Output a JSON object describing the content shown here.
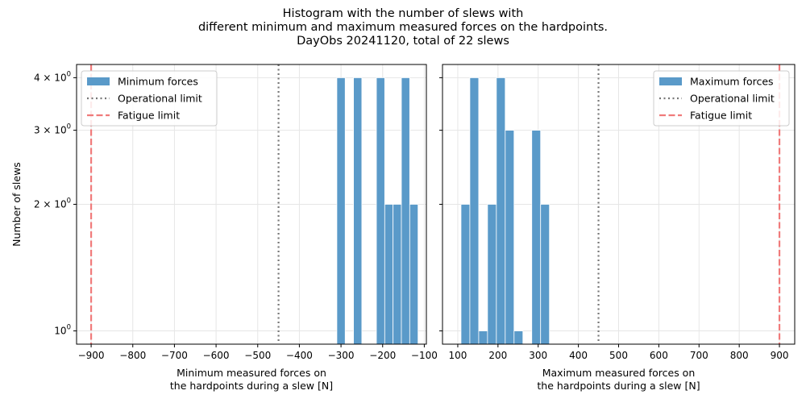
{
  "figure": {
    "title_lines": [
      "Histogram with the number of slews with",
      "different minimum and maximum measured forces on the hardpoints.",
      "DayObs 20241120, total of 22 slews"
    ]
  },
  "colors": {
    "bar": "#5a9ac9",
    "bar_edge": "#ffffff",
    "operational": "#777777",
    "fatigue": "#f07b7b",
    "grid": "#e6e6e6"
  },
  "chart_data": [
    {
      "type": "bar",
      "panel": "left",
      "xlabel": [
        "Minimum measured forces on",
        "the hardpoints during a slew [N]"
      ],
      "ylabel": "Number of slews",
      "yscale": "log",
      "xlim": [
        -935,
        -95
      ],
      "ylim": [
        0.93,
        4.3
      ],
      "xticks": [
        -900,
        -800,
        -700,
        -600,
        -500,
        -400,
        -300,
        -200,
        -100
      ],
      "xtick_labels": [
        "−900",
        "−800",
        "−700",
        "−600",
        "−500",
        "−400",
        "−300",
        "−200",
        "−100"
      ],
      "yticks": [
        {
          "value": 1,
          "base": "10",
          "exp": "0",
          "prefix": ""
        },
        {
          "value": 2,
          "base": "10",
          "exp": "0",
          "prefix": "2 × "
        },
        {
          "value": 3,
          "base": "10",
          "exp": "0",
          "prefix": "3 × "
        },
        {
          "value": 4,
          "base": "10",
          "exp": "0",
          "prefix": "4 × "
        }
      ],
      "bin_width": 20,
      "bars": [
        {
          "left": -310,
          "value": 4
        },
        {
          "left": -270,
          "value": 4
        },
        {
          "left": -215,
          "value": 4
        },
        {
          "left": -195,
          "value": 2
        },
        {
          "left": -175,
          "value": 2
        },
        {
          "left": -155,
          "value": 4
        },
        {
          "left": -135,
          "value": 2
        }
      ],
      "operational_limit": -450,
      "fatigue_limit": -900,
      "legend": {
        "position": "upper left",
        "entries": [
          "Minimum forces",
          "Operational limit",
          "Fatigue limit"
        ]
      },
      "grid": true
    },
    {
      "type": "bar",
      "panel": "right",
      "xlabel": [
        "Maximum measured forces on",
        "the hardpoints during a slew [N]"
      ],
      "ylabel": "",
      "yscale": "log",
      "xlim": [
        62,
        938
      ],
      "ylim": [
        0.93,
        4.3
      ],
      "xticks": [
        100,
        200,
        300,
        400,
        500,
        600,
        700,
        800,
        900
      ],
      "xtick_labels": [
        "100",
        "200",
        "300",
        "400",
        "500",
        "600",
        "700",
        "800",
        "900"
      ],
      "yticks": [],
      "bin_width": 22,
      "bars": [
        {
          "left": 108,
          "value": 2
        },
        {
          "left": 130,
          "value": 4
        },
        {
          "left": 152,
          "value": 1
        },
        {
          "left": 174,
          "value": 2
        },
        {
          "left": 196,
          "value": 4
        },
        {
          "left": 218,
          "value": 3
        },
        {
          "left": 240,
          "value": 1
        },
        {
          "left": 284,
          "value": 3
        },
        {
          "left": 306,
          "value": 2
        }
      ],
      "operational_limit": 450,
      "fatigue_limit": 900,
      "legend": {
        "position": "upper right",
        "entries": [
          "Maximum forces",
          "Operational limit",
          "Fatigue limit"
        ]
      },
      "grid": true
    }
  ]
}
